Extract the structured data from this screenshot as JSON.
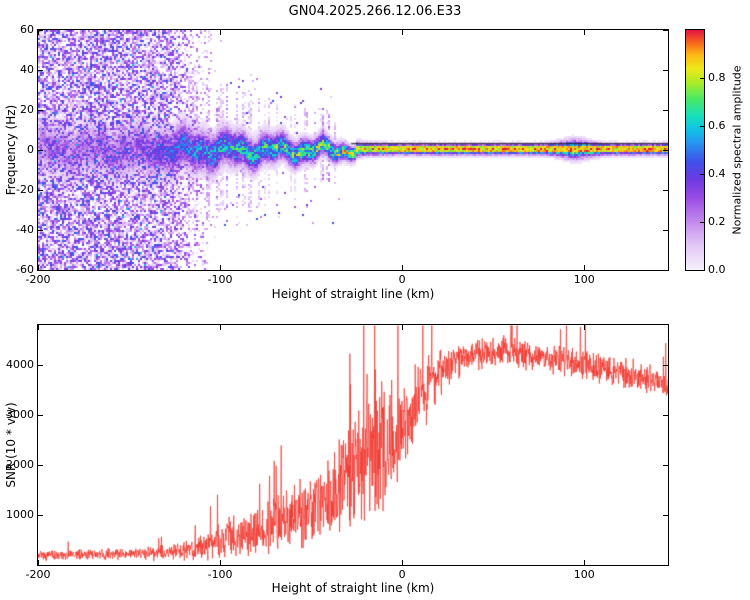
{
  "title": "GN04.2025.266.12.06.E33",
  "background": "#ffffff",
  "axes_color": "#000000",
  "chart_data": [
    {
      "type": "heatmap",
      "name": "spectrogram",
      "title": "GN04.2025.266.12.06.E33",
      "xlabel": "Height of straight line (km)",
      "ylabel": "Frequency (Hz)",
      "xlim": [
        -200,
        146
      ],
      "ylim": [
        -60,
        60
      ],
      "x_ticks": [
        -200,
        -100,
        0,
        100
      ],
      "y_ticks": [
        -60,
        -40,
        -20,
        0,
        20,
        40,
        60
      ],
      "grid": false,
      "legend": "none",
      "colorbar": {
        "label": "Normalized spectral amplitude",
        "range": [
          0,
          1.0
        ],
        "ticks": [
          0.0,
          0.2,
          0.4,
          0.6,
          0.8
        ],
        "position": "right"
      },
      "colormap": [
        {
          "t": 0.0,
          "c": "#f7f0fd"
        },
        {
          "t": 0.1,
          "c": "#e3c8f6"
        },
        {
          "t": 0.2,
          "c": "#c48aec"
        },
        {
          "t": 0.3,
          "c": "#9a4ce4"
        },
        {
          "t": 0.38,
          "c": "#6d3ae2"
        },
        {
          "t": 0.45,
          "c": "#3f51e8"
        },
        {
          "t": 0.52,
          "c": "#2b8df0"
        },
        {
          "t": 0.58,
          "c": "#12c0e8"
        },
        {
          "t": 0.64,
          "c": "#16dfc0"
        },
        {
          "t": 0.71,
          "c": "#45e868"
        },
        {
          "t": 0.78,
          "c": "#a8ec28"
        },
        {
          "t": 0.84,
          "c": "#eee818"
        },
        {
          "t": 0.9,
          "c": "#fdb515"
        },
        {
          "t": 0.95,
          "c": "#f8641e"
        },
        {
          "t": 1.0,
          "c": "#e41840"
        }
      ],
      "signal_band": {
        "description": "Horizontal echo band centered near 0 Hz: broad ragged spread below -100 km, narrowing to a tight saturated line (yellow-red core, green/cyan/blue/purple fringes) from about -30 km to the right edge, slight bulge near +95 km, thin dark trace along +3 Hz.",
        "center_hz": 0,
        "halfwidth_profile": [
          [
            -200,
            14
          ],
          [
            -140,
            14
          ],
          [
            -100,
            10
          ],
          [
            -60,
            7
          ],
          [
            -35,
            5
          ],
          [
            -20,
            3.2
          ],
          [
            0,
            2.8
          ],
          [
            146,
            2.8
          ]
        ],
        "amplitude_profile": [
          [
            -200,
            0.25
          ],
          [
            -145,
            0.3
          ],
          [
            -120,
            0.5
          ],
          [
            -100,
            0.62
          ],
          [
            -60,
            0.72
          ],
          [
            -30,
            0.82
          ],
          [
            0,
            0.93
          ],
          [
            146,
            0.95
          ]
        ],
        "bulge": {
          "x": 95,
          "extra_halfwidth": 2,
          "sigma": 10
        },
        "dark_line_hz": 3.4,
        "dark_line_x_start": -28
      },
      "noise_field": {
        "description": "Dense purple speckle noise covering all frequencies left of about -130 km, fading out by about -98 km, sparse speckles near the band until about -30 km.",
        "full_region_x": [
          -200,
          -130
        ],
        "fade_region_x": [
          -130,
          -98
        ],
        "sparse_region_x": [
          -98,
          -30
        ],
        "density": 0.78,
        "max_amp": 0.45
      }
    },
    {
      "type": "line",
      "name": "snr-profile",
      "xlabel": "Height of straight line (km)",
      "ylabel": "SNR (10 * v/v)",
      "xlim": [
        -200,
        146
      ],
      "ylim": [
        0,
        4800
      ],
      "x_ticks": [
        -200,
        -100,
        0,
        100
      ],
      "y_ticks": [
        1000,
        2000,
        3000,
        4000
      ],
      "grid": false,
      "legend": "none",
      "color": "#f03028",
      "envelope_points_x_mean_spread": [
        [
          -200,
          200,
          120
        ],
        [
          -185,
          205,
          120
        ],
        [
          -170,
          210,
          125
        ],
        [
          -155,
          215,
          130
        ],
        [
          -140,
          230,
          150
        ],
        [
          -128,
          255,
          190
        ],
        [
          -118,
          300,
          260
        ],
        [
          -110,
          360,
          330
        ],
        [
          -103,
          430,
          400
        ],
        [
          -96,
          520,
          470
        ],
        [
          -89,
          600,
          520
        ],
        [
          -82,
          680,
          560
        ],
        [
          -75,
          760,
          600
        ],
        [
          -68,
          880,
          660
        ],
        [
          -61,
          980,
          720
        ],
        [
          -54,
          1080,
          780
        ],
        [
          -47,
          1180,
          850
        ],
        [
          -40,
          1380,
          950
        ],
        [
          -34,
          1550,
          1050
        ],
        [
          -28,
          1750,
          1250
        ],
        [
          -23,
          2000,
          1500
        ],
        [
          -19,
          2250,
          1750
        ],
        [
          -15,
          2500,
          2000
        ],
        [
          -12,
          2300,
          1600
        ],
        [
          -9,
          2350,
          1450
        ],
        [
          -6,
          2450,
          1350
        ],
        [
          -3,
          2600,
          1250
        ],
        [
          0,
          2750,
          1150
        ],
        [
          4,
          3000,
          1000
        ],
        [
          8,
          3250,
          900
        ],
        [
          13,
          3500,
          800
        ],
        [
          18,
          3750,
          650
        ],
        [
          24,
          3950,
          520
        ],
        [
          30,
          4100,
          430
        ],
        [
          37,
          4200,
          380
        ],
        [
          45,
          4250,
          360
        ],
        [
          55,
          4280,
          360
        ],
        [
          65,
          4230,
          360
        ],
        [
          75,
          4180,
          360
        ],
        [
          85,
          4120,
          360
        ],
        [
          95,
          4060,
          370
        ],
        [
          105,
          3980,
          370
        ],
        [
          115,
          3900,
          360
        ],
        [
          125,
          3820,
          360
        ],
        [
          135,
          3720,
          340
        ],
        [
          146,
          3620,
          320
        ]
      ],
      "spike": {
        "x": -15,
        "value": 4790
      }
    }
  ]
}
